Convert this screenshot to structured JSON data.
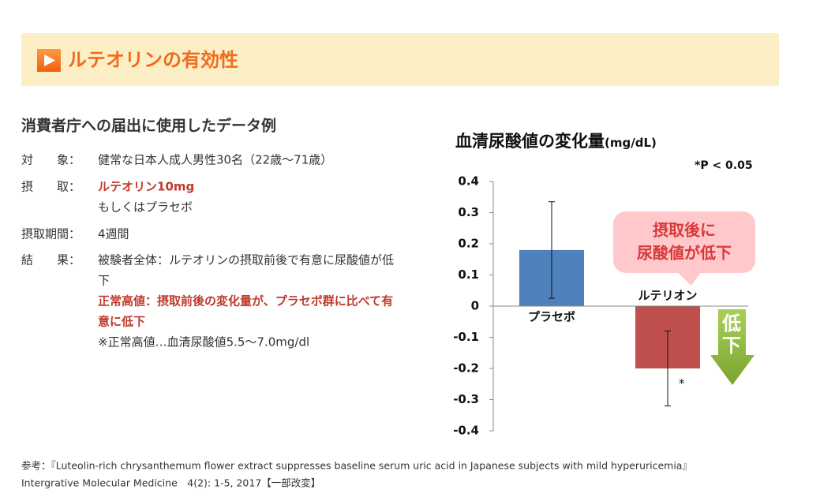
{
  "header": {
    "title": "ルテオリンの有効性"
  },
  "section": {
    "title": "消費者庁への届出に使用したデータ例",
    "rows": [
      {
        "label": "対　　象：",
        "lines": [
          {
            "text": "健常な日本人成人男性30名（22歳～71歳）"
          }
        ]
      },
      {
        "label": "摂　　取：",
        "lines": [
          {
            "text": "ルテオリン10mg",
            "color": "#c0392b"
          },
          {
            "text": "もしくはプラセボ"
          }
        ]
      },
      {
        "label": "摂取期間：",
        "lines": [
          {
            "text": "4週間"
          }
        ]
      },
      {
        "label": "結　　果：",
        "lines": [
          {
            "text": "被験者全体：ルテオリンの摂取前後で有意に尿酸値が低"
          },
          {
            "text": "下"
          },
          {
            "text": "正常高値：摂取前後の変化量が、プラセボ群に比べて有",
            "color": "#c0392b"
          },
          {
            "text": "意に低下",
            "color": "#c0392b"
          },
          {
            "text": "※正常高値…血清尿酸値5.5～7.0mg/dl"
          }
        ]
      }
    ]
  },
  "chart_data": {
    "type": "bar",
    "title": "血清尿酸値の変化量",
    "unit": "(mg/dL)",
    "note": "*P < 0.05",
    "categories": [
      "プラセボ",
      "ルテリオン"
    ],
    "values": [
      0.18,
      -0.2
    ],
    "errors": [
      0.155,
      0.12
    ],
    "colors": [
      "#4f81bd",
      "#c0504d"
    ],
    "significance": [
      null,
      "*"
    ],
    "ylim": [
      -0.4,
      0.4
    ],
    "yticks": [
      0.4,
      0.3,
      0.2,
      0.1,
      0,
      -0.1,
      -0.2,
      -0.3,
      -0.4
    ],
    "callout": [
      "摂取後に",
      "尿酸値が低下"
    ],
    "arrow_label": [
      "低",
      "下"
    ]
  },
  "footer": {
    "lines": [
      "参考：『Luteolin-rich chrysanthemum flower extract suppresses baseline serum uric acid in Japanese subjects with mild hyperuricemia』",
      "Intergrative Molecular Medicine　4(2): 1-5, 2017【一部改変】"
    ]
  }
}
